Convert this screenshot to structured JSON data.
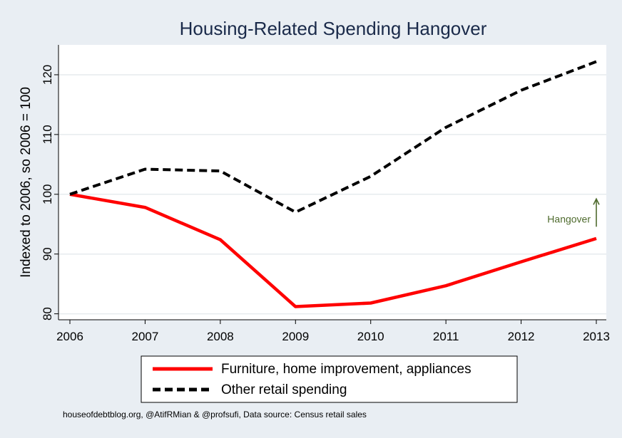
{
  "chart_data": {
    "type": "line",
    "title": "Housing-Related Spending Hangover",
    "xlabel": "",
    "ylabel": "Indexed to 2006, so 2006 = 100",
    "x": [
      2006,
      2007,
      2008,
      2009,
      2010,
      2011,
      2012,
      2013
    ],
    "xlim": [
      2006,
      2013
    ],
    "ylim": [
      79,
      125
    ],
    "yticks": [
      80,
      90,
      100,
      110,
      120
    ],
    "grid": true,
    "legend_position": "bottom",
    "series": [
      {
        "name": "Furniture, home improvement, appliances",
        "values": [
          100,
          97.8,
          92.4,
          81.2,
          81.8,
          84.7,
          88.7,
          92.6
        ],
        "color": "#ff0000",
        "style": "solid"
      },
      {
        "name": "Other retail spending",
        "values": [
          100,
          104.2,
          103.9,
          97.0,
          103.0,
          111.2,
          117.4,
          122.2
        ],
        "color": "#000000",
        "style": "dashed"
      }
    ],
    "annotations": [
      {
        "text": "Hangover",
        "x": 2013,
        "y": 96,
        "arrow": "up",
        "color": "#4f6b2e"
      }
    ],
    "footnote": "houseofdebtblog.org, @AtifRMian & @profsufi, Data source: Census retail sales"
  }
}
